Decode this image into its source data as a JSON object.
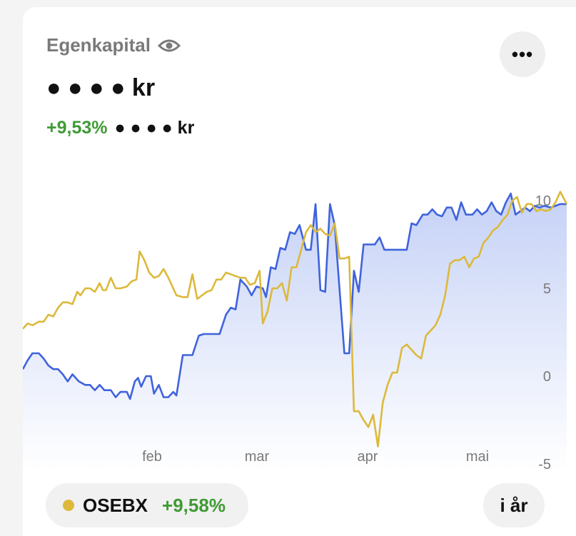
{
  "header": {
    "title": "Egenkapital",
    "balance": "● ● ● ● kr",
    "change_pct": "+9,53%",
    "change_amount": "● ● ● ● kr"
  },
  "icons": {
    "visibility": "eye-icon",
    "more": "more-horizontal-icon"
  },
  "menu_label": "•••",
  "colors": {
    "portfolio_line": "#3f63dc",
    "benchmark_line": "#dcb93b",
    "positive": "#3f9b34",
    "fill_top": "#c2cff6"
  },
  "benchmark": {
    "name": "OSEBX",
    "change": "+9,58%"
  },
  "period_button": "i år",
  "chart_data": {
    "type": "line",
    "x_tick_labels": [
      "feb",
      "mar",
      "apr",
      "mai"
    ],
    "y_tick_labels": [
      "10",
      "5",
      "0",
      "-5"
    ],
    "ylim": [
      -5,
      10
    ],
    "grid": false,
    "y_axis_side": "right",
    "series": [
      {
        "key": "portfolio",
        "area_fill": true,
        "points": [
          [
            0,
            0.4
          ],
          [
            0.3,
            0.9
          ],
          [
            0.6,
            1.3
          ],
          [
            1.0,
            1.3
          ],
          [
            1.3,
            1.0
          ],
          [
            1.6,
            0.6
          ],
          [
            1.9,
            0.4
          ],
          [
            2.2,
            0.4
          ],
          [
            2.5,
            0.1
          ],
          [
            2.8,
            -0.3
          ],
          [
            3.1,
            0.1
          ],
          [
            3.5,
            -0.3
          ],
          [
            3.9,
            -0.5
          ],
          [
            4.2,
            -0.5
          ],
          [
            4.5,
            -0.8
          ],
          [
            4.8,
            -0.5
          ],
          [
            5.1,
            -0.8
          ],
          [
            5.5,
            -0.8
          ],
          [
            5.8,
            -1.2
          ],
          [
            6.1,
            -0.9
          ],
          [
            6.5,
            -0.9
          ],
          [
            6.7,
            -1.3
          ],
          [
            7.0,
            -0.3
          ],
          [
            7.2,
            -0.1
          ],
          [
            7.4,
            -0.6
          ],
          [
            7.7,
            0
          ],
          [
            8.0,
            0
          ],
          [
            8.2,
            -1.0
          ],
          [
            8.5,
            -0.5
          ],
          [
            8.8,
            -1.2
          ],
          [
            9.1,
            -1.2
          ],
          [
            9.4,
            -0.9
          ],
          [
            9.6,
            -1.1
          ],
          [
            10.0,
            1.2
          ],
          [
            10.3,
            1.2
          ],
          [
            10.6,
            1.2
          ],
          [
            11.0,
            2.3
          ],
          [
            11.3,
            2.4
          ],
          [
            11.7,
            2.4
          ],
          [
            12.0,
            2.4
          ],
          [
            12.3,
            2.4
          ],
          [
            12.7,
            3.5
          ],
          [
            13.0,
            3.9
          ],
          [
            13.3,
            3.8
          ],
          [
            13.6,
            5.5
          ],
          [
            14.0,
            5.1
          ],
          [
            14.3,
            4.6
          ],
          [
            14.6,
            5.1
          ],
          [
            15.0,
            5.0
          ],
          [
            15.2,
            4.5
          ],
          [
            15.5,
            6.2
          ],
          [
            15.8,
            6.1
          ],
          [
            16.1,
            7.3
          ],
          [
            16.4,
            7.2
          ],
          [
            16.7,
            8.2
          ],
          [
            17.0,
            8.1
          ],
          [
            17.3,
            8.6
          ],
          [
            17.7,
            7.2
          ],
          [
            18.0,
            7.2
          ],
          [
            18.3,
            9.8
          ],
          [
            18.6,
            4.9
          ],
          [
            18.9,
            4.8
          ],
          [
            19.2,
            9.8
          ],
          [
            19.5,
            8.6
          ],
          [
            19.8,
            4.9
          ],
          [
            20.1,
            1.3
          ],
          [
            20.4,
            1.3
          ],
          [
            20.7,
            6.0
          ],
          [
            21.0,
            4.8
          ],
          [
            21.3,
            7.5
          ],
          [
            21.6,
            7.5
          ],
          [
            22.0,
            7.5
          ],
          [
            22.3,
            7.9
          ],
          [
            22.6,
            7.2
          ],
          [
            23.0,
            7.2
          ],
          [
            23.3,
            7.2
          ],
          [
            23.6,
            7.2
          ],
          [
            24.0,
            7.2
          ],
          [
            24.3,
            8.7
          ],
          [
            24.6,
            8.6
          ],
          [
            25.0,
            9.2
          ],
          [
            25.3,
            9.2
          ],
          [
            25.6,
            9.5
          ],
          [
            25.9,
            9.2
          ],
          [
            26.2,
            9.1
          ],
          [
            26.5,
            9.6
          ],
          [
            26.8,
            9.6
          ],
          [
            27.1,
            8.9
          ],
          [
            27.4,
            9.9
          ],
          [
            27.7,
            9.2
          ],
          [
            28.1,
            9.2
          ],
          [
            28.4,
            9.5
          ],
          [
            28.7,
            9.2
          ],
          [
            29.0,
            9.4
          ],
          [
            29.3,
            9.9
          ],
          [
            29.6,
            9.4
          ],
          [
            29.9,
            9.2
          ],
          [
            30.2,
            9.9
          ],
          [
            30.5,
            10.4
          ],
          [
            30.8,
            9.2
          ],
          [
            31.1,
            9.4
          ],
          [
            31.4,
            9.6
          ],
          [
            31.7,
            9.4
          ],
          [
            32.0,
            9.7
          ],
          [
            32.3,
            9.6
          ],
          [
            32.6,
            9.7
          ],
          [
            33.0,
            9.6
          ],
          [
            33.3,
            9.7
          ],
          [
            33.6,
            9.8
          ],
          [
            34.0,
            9.8
          ]
        ]
      },
      {
        "key": "osebx",
        "area_fill": false,
        "points": [
          [
            0,
            2.7
          ],
          [
            0.3,
            3.0
          ],
          [
            0.6,
            2.9
          ],
          [
            1.0,
            3.1
          ],
          [
            1.3,
            3.1
          ],
          [
            1.6,
            3.5
          ],
          [
            1.9,
            3.4
          ],
          [
            2.2,
            3.9
          ],
          [
            2.5,
            4.2
          ],
          [
            2.8,
            4.2
          ],
          [
            3.1,
            4.1
          ],
          [
            3.4,
            4.8
          ],
          [
            3.6,
            4.6
          ],
          [
            3.9,
            5.0
          ],
          [
            4.2,
            5.0
          ],
          [
            4.5,
            4.8
          ],
          [
            4.8,
            5.3
          ],
          [
            5.0,
            4.9
          ],
          [
            5.2,
            4.9
          ],
          [
            5.5,
            5.6
          ],
          [
            5.8,
            5.0
          ],
          [
            6.1,
            5.0
          ],
          [
            6.5,
            5.1
          ],
          [
            6.8,
            5.4
          ],
          [
            7.1,
            5.5
          ],
          [
            7.3,
            7.1
          ],
          [
            7.6,
            6.6
          ],
          [
            7.9,
            5.9
          ],
          [
            8.2,
            5.6
          ],
          [
            8.5,
            5.7
          ],
          [
            8.8,
            6.1
          ],
          [
            9.1,
            5.6
          ],
          [
            9.4,
            5.0
          ],
          [
            9.6,
            4.6
          ],
          [
            10.0,
            4.5
          ],
          [
            10.3,
            4.5
          ],
          [
            10.6,
            5.8
          ],
          [
            10.9,
            4.4
          ],
          [
            11.2,
            4.6
          ],
          [
            11.5,
            4.8
          ],
          [
            11.8,
            4.9
          ],
          [
            12.1,
            5.5
          ],
          [
            12.4,
            5.5
          ],
          [
            12.7,
            5.9
          ],
          [
            13.0,
            5.8
          ],
          [
            13.3,
            5.7
          ],
          [
            13.6,
            5.6
          ],
          [
            13.9,
            5.6
          ],
          [
            14.2,
            5.2
          ],
          [
            14.5,
            5.3
          ],
          [
            14.8,
            6.0
          ],
          [
            15.0,
            3.0
          ],
          [
            15.3,
            3.7
          ],
          [
            15.6,
            5.0
          ],
          [
            15.9,
            5.0
          ],
          [
            16.2,
            5.3
          ],
          [
            16.5,
            4.3
          ],
          [
            16.8,
            6.2
          ],
          [
            17.1,
            6.2
          ],
          [
            17.4,
            7.2
          ],
          [
            17.7,
            8.2
          ],
          [
            18.0,
            8.6
          ],
          [
            18.3,
            8.2
          ],
          [
            18.6,
            8.4
          ],
          [
            18.9,
            8.1
          ],
          [
            19.2,
            8.0
          ],
          [
            19.5,
            8.7
          ],
          [
            19.8,
            6.7
          ],
          [
            20.1,
            6.7
          ],
          [
            20.4,
            6.8
          ],
          [
            20.7,
            -2.0
          ],
          [
            21.0,
            -2.0
          ],
          [
            21.3,
            -2.5
          ],
          [
            21.6,
            -2.9
          ],
          [
            21.9,
            -2.2
          ],
          [
            22.2,
            -4.0
          ],
          [
            22.5,
            -1.5
          ],
          [
            22.8,
            -0.5
          ],
          [
            23.1,
            0.2
          ],
          [
            23.4,
            0.2
          ],
          [
            23.7,
            1.6
          ],
          [
            24.0,
            1.8
          ],
          [
            24.3,
            1.5
          ],
          [
            24.6,
            1.2
          ],
          [
            24.9,
            1.0
          ],
          [
            25.2,
            2.3
          ],
          [
            25.5,
            2.6
          ],
          [
            25.8,
            2.9
          ],
          [
            26.1,
            3.5
          ],
          [
            26.4,
            4.6
          ],
          [
            26.7,
            6.4
          ],
          [
            27.0,
            6.6
          ],
          [
            27.3,
            6.6
          ],
          [
            27.6,
            6.8
          ],
          [
            27.9,
            6.2
          ],
          [
            28.2,
            6.7
          ],
          [
            28.5,
            6.8
          ],
          [
            28.8,
            7.6
          ],
          [
            29.1,
            7.9
          ],
          [
            29.4,
            8.3
          ],
          [
            29.7,
            8.5
          ],
          [
            30.0,
            8.9
          ],
          [
            30.3,
            9.2
          ],
          [
            30.6,
            10.0
          ],
          [
            30.9,
            10.2
          ],
          [
            31.2,
            9.3
          ],
          [
            31.5,
            9.8
          ],
          [
            31.8,
            9.8
          ],
          [
            32.1,
            9.4
          ],
          [
            32.4,
            9.5
          ],
          [
            32.7,
            9.4
          ],
          [
            33.0,
            9.5
          ],
          [
            33.3,
            9.9
          ],
          [
            33.6,
            10.5
          ],
          [
            34.0,
            9.8
          ]
        ]
      }
    ]
  }
}
